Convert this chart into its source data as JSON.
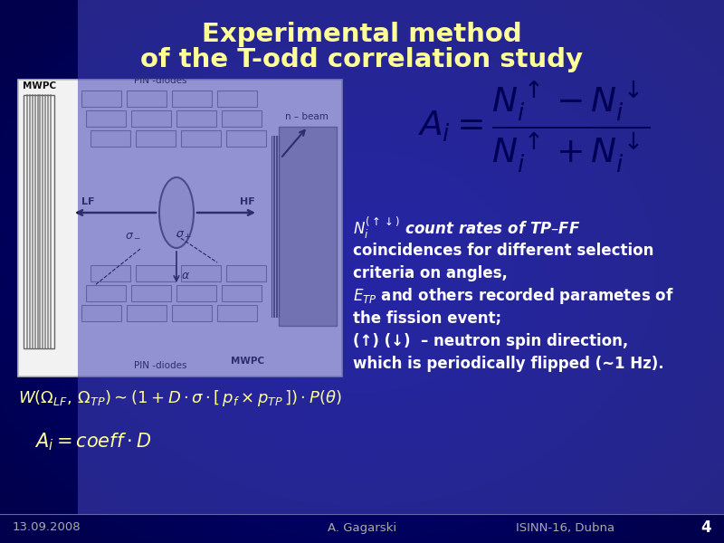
{
  "title_line1": "Experimental method",
  "title_line2": "of the T-odd correlation study",
  "title_color": "#FFFF99",
  "bg_dark": "#000066",
  "bg_mid": "#0000AA",
  "text_color": "#FFFFFF",
  "footer_color": "#AAAAAA",
  "diagram_bg": "#F0F0F0",
  "diagram_border": "#CCCCCC",
  "formula_text": "$A_i = \\dfrac{N_i^{\\uparrow} - N_i^{\\downarrow}}{N_i^{\\uparrow} + N_i^{\\downarrow}}$",
  "desc_lines": [
    "$\\mathit{N_i^{(\\uparrow\\downarrow)}}$ count rates of TP–FF",
    "coincidences for different selection",
    "criteria on angles,",
    "$E_{TP}$ and others recorded parametes of",
    "the fission event;",
    "(↑) (↓)  – neutron spin direction,",
    "which is periodically flipped (~1 Hz)."
  ],
  "bottom_formula": "$W(\\Omega_{LF},\\, \\Omega_{TP}) \\sim (1 + D \\cdot \\sigma \\cdot [\\, p_f \\times p_{TP}\\,]) \\cdot P(\\theta)$",
  "coeff_formula": "$A_i = coeff \\cdot D$",
  "footer_left": "13.09.2008",
  "footer_center": "A. Gagarski",
  "footer_right": "ISINN-16, Dubna",
  "footer_page": "4"
}
